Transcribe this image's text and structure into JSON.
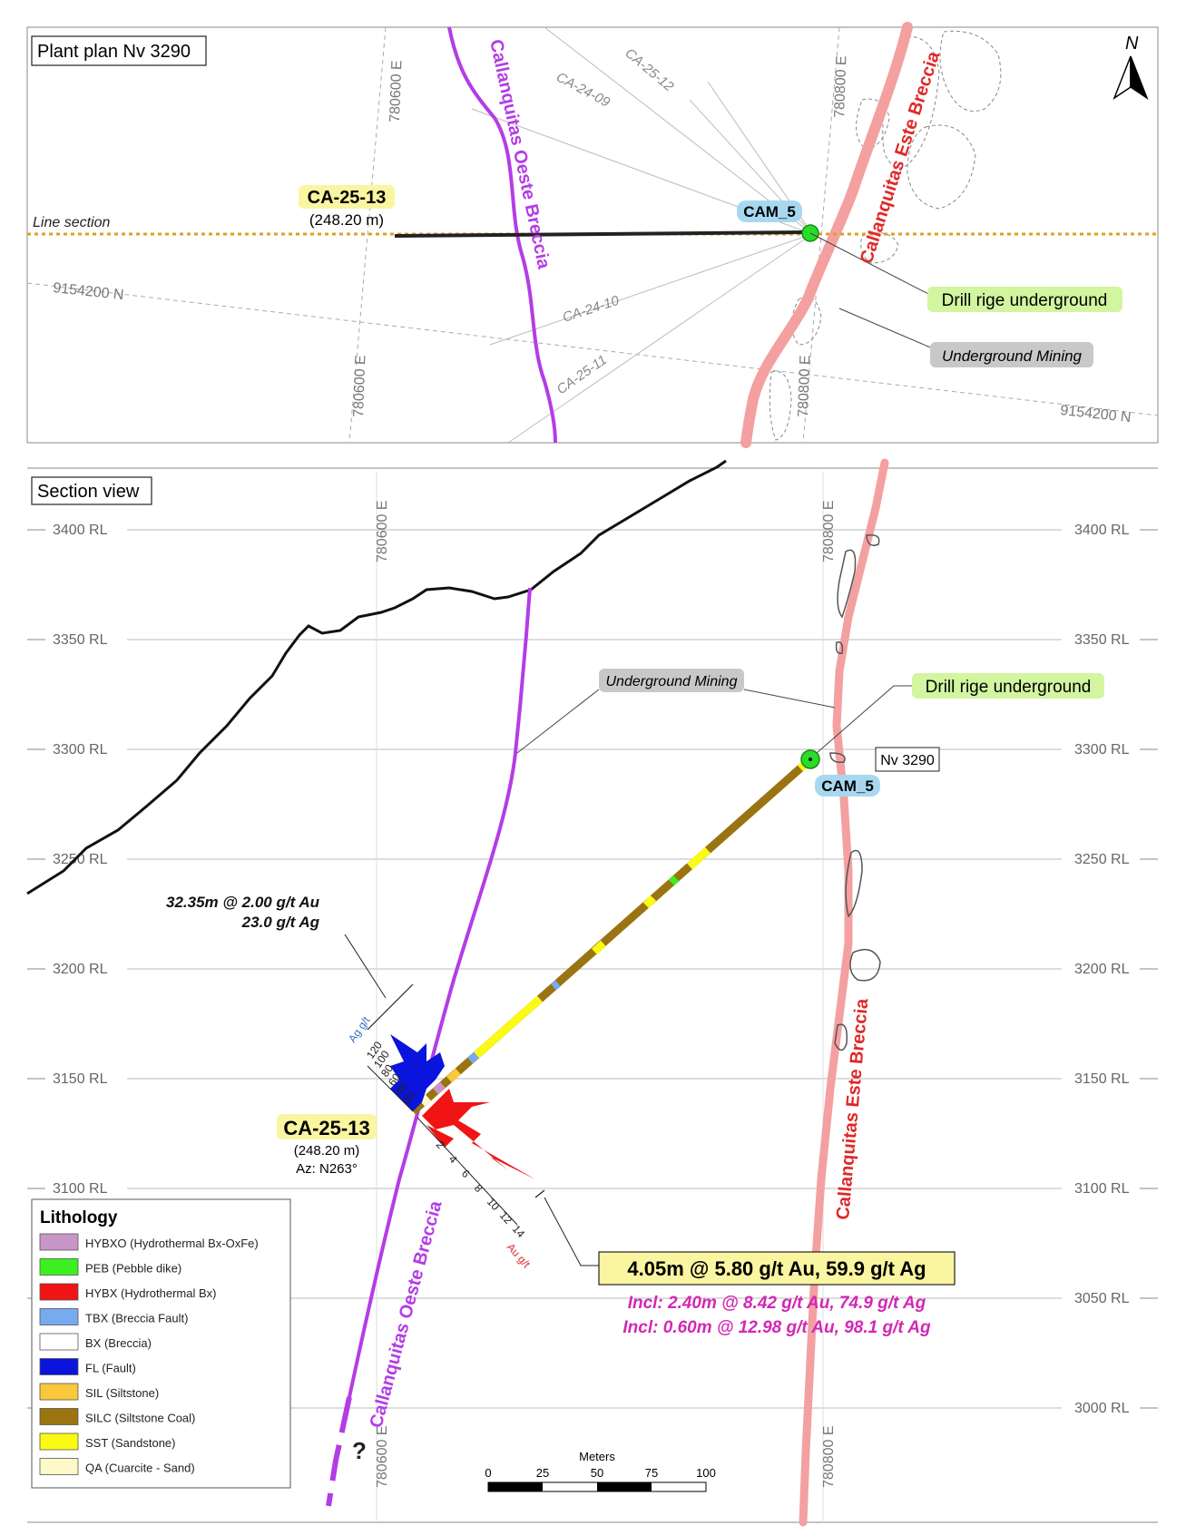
{
  "plan": {
    "title": "Plant plan Nv 3290",
    "north": "N",
    "line_section": "Line section",
    "hole_id": "CA-25-13",
    "hole_length": "(248.20 m)",
    "collar": "CAM_5",
    "drill": "Drill rige underground",
    "mining": "Underground Mining",
    "breccia_w": "Callanquitas Oeste Breccia",
    "breccia_e": "Callanquitas Este Breccia",
    "grid_e1": "780600 E",
    "grid_e2": "780800 E",
    "grid_n": "9154200 N",
    "holes": [
      "CA-24-09",
      "CA-25-12",
      "CA-24-10",
      "CA-25-11"
    ]
  },
  "section": {
    "title": "Section view",
    "rl_labels": [
      "3400 RL",
      "3350 RL",
      "3300 RL",
      "3250 RL",
      "3200 RL",
      "3150 RL",
      "3100 RL",
      "3050 RL",
      "3000 RL"
    ],
    "grid_e1": "780600 E",
    "grid_e2": "780800 E",
    "mining": "Underground Mining",
    "drill": "Drill rige underground",
    "collar": "CAM_5",
    "level": "Nv 3290",
    "hole_id": "CA-25-13",
    "hole_length": "(248.20 m)",
    "azimuth": "Az: N263°",
    "intercept_1a": "32.35m @ 2.00 g/t Au",
    "intercept_1b": "23.0 g/t Ag",
    "intercept_main": "4.05m @ 5.80 g/t Au, 59.9 g/t Ag",
    "incl_1": "Incl: 2.40m @ 8.42 g/t Au, 74.9 g/t Ag",
    "incl_2": "Incl: 0.60m @ 12.98 g/t Au, 98.1 g/t Ag",
    "breccia_w": "Callanquitas Oeste Breccia",
    "breccia_e": "Callanquitas Este Breccia",
    "question": "?",
    "ag_axis_title": "Ag g/t",
    "ag_ticks": [
      "120",
      "100",
      "80",
      "60",
      "40",
      "20"
    ],
    "au_axis_title": "Au g/t",
    "au_ticks": [
      "2",
      "4",
      "6",
      "8",
      "10",
      "12",
      "14"
    ],
    "scale_title": "Meters",
    "scale_ticks": [
      "0",
      "25",
      "50",
      "75",
      "100"
    ]
  },
  "legend": {
    "title": "Lithology",
    "items": [
      {
        "label": "HYBXO (Hydrothermal Bx-OxFe)",
        "color": "#c896c8"
      },
      {
        "label": "PEB (Pebble dike)",
        "color": "#3cf020"
      },
      {
        "label": "HYBX (Hydrothermal Bx)",
        "color": "#f01414"
      },
      {
        "label": "TBX (Breccia Fault)",
        "color": "#78aaf0"
      },
      {
        "label": "BX (Breccia)",
        "color": "#ffffff"
      },
      {
        "label": "FL (Fault)",
        "color": "#0a14dc"
      },
      {
        "label": "SIL (Siltstone)",
        "color": "#fac83c"
      },
      {
        "label": "SILC (Siltstone Coal)",
        "color": "#9a7410"
      },
      {
        "label": "SST (Sandstone)",
        "color": "#fafa14"
      },
      {
        "label": "QA (Cuarcite - Sand)",
        "color": "#fff8c8"
      }
    ]
  },
  "colors": {
    "oeste": "#b43ce6",
    "este": "#f4a0a0",
    "este_label": "#e02828",
    "highlight_green": "#d2f5a0",
    "highlight_blue": "#a8d8f0",
    "highlight_yellow": "#faf5a0",
    "incl": "#d228b4",
    "collar": "#28dc28"
  }
}
